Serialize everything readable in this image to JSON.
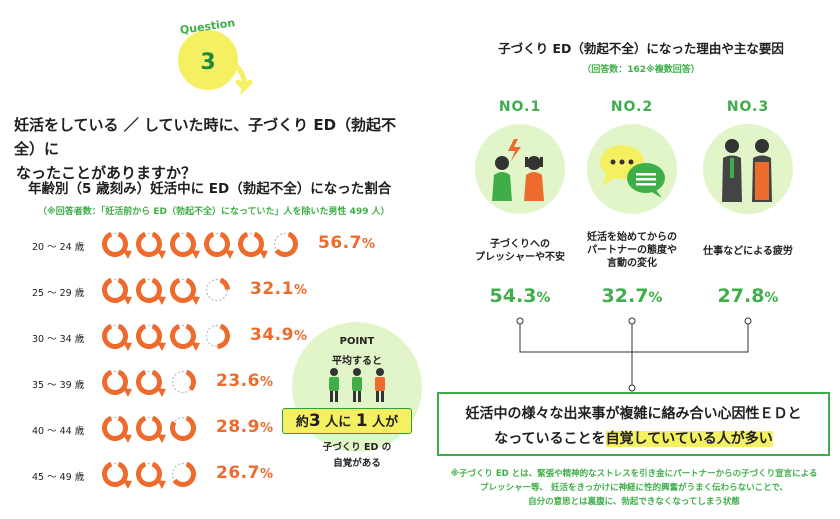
{
  "question": {
    "word": "Question",
    "number": "3",
    "text_line1": "妊活をしている ／ していた時に、子づくり ED（勃起不全）に",
    "text_line2": "なったことがありますか？"
  },
  "age_section": {
    "title": "年齢別（5 歳刻み）妊活中に ED（勃起不全）になった割合",
    "note": "（※回答者数：「妊活前から ED（勃起不全）になっていた」人を除いた男性 499 人）"
  },
  "colors": {
    "orange": "#ec6b2d",
    "green": "#3fae49",
    "light_green": "#e2f5c8",
    "yellow": "#f5f061"
  },
  "chart_data": {
    "type": "bar",
    "categories": [
      "20 ～ 24 歳",
      "25 ～ 29 歳",
      "30 ～ 34 歳",
      "35 ～ 39 歳",
      "40 ～ 44 歳",
      "45 ～ 49 歳"
    ],
    "values": [
      56.7,
      32.1,
      34.9,
      23.6,
      28.9,
      26.7
    ],
    "labels": [
      "56.7",
      "32.1",
      "34.9",
      "23.6",
      "28.9",
      "26.7"
    ],
    "unit": "%",
    "ylim": [
      0,
      100
    ]
  },
  "point": {
    "title": "POINT",
    "avg": "平均すると",
    "highlight_pre": "約",
    "highlight_num1": "3",
    "highlight_mid": " 人に ",
    "highlight_num2": "1",
    "highlight_post": " 人が",
    "sub1": "子づくり ED の",
    "sub2": "自覚がある"
  },
  "reasons": {
    "title": "子づくり ED（勃起不全）になった理由や主な要因",
    "note": "（回答数：162※複数回答）",
    "items": [
      {
        "rank": "NO.1",
        "line1": "子づくりへの",
        "line2": "プレッシャーや不安",
        "line3": "",
        "value": "54.3",
        "unit": "%",
        "icon": "stressed-couple-icon"
      },
      {
        "rank": "NO.2",
        "line1": "妊活を始めてからの",
        "line2": "パートナーの態度や",
        "line3": "言動の変化",
        "value": "32.7",
        "unit": "%",
        "icon": "speech-bubbles-icon"
      },
      {
        "rank": "NO.3",
        "line1": "仕事などによる疲労",
        "line2": "",
        "line3": "",
        "value": "27.8",
        "unit": "%",
        "icon": "tired-workers-icon"
      }
    ]
  },
  "summary": {
    "line1": "妊活中の様々な出来事が複雑に絡み合い心因性ＥＤと",
    "line2_pre": "なっていることを",
    "line2_hl": "自覚していている人が多い"
  },
  "footnote": {
    "line1": "※子づくり ED とは、緊張や精神的なストレスを引き金にパートナーからの子づくり宣言による",
    "line2": "プレッシャー等、 妊活をきっかけに神経に性的興奮がうまく伝わらないことで、",
    "line3": "自分の意思とは裏腹に、勃起できなくなってしまう状態"
  }
}
